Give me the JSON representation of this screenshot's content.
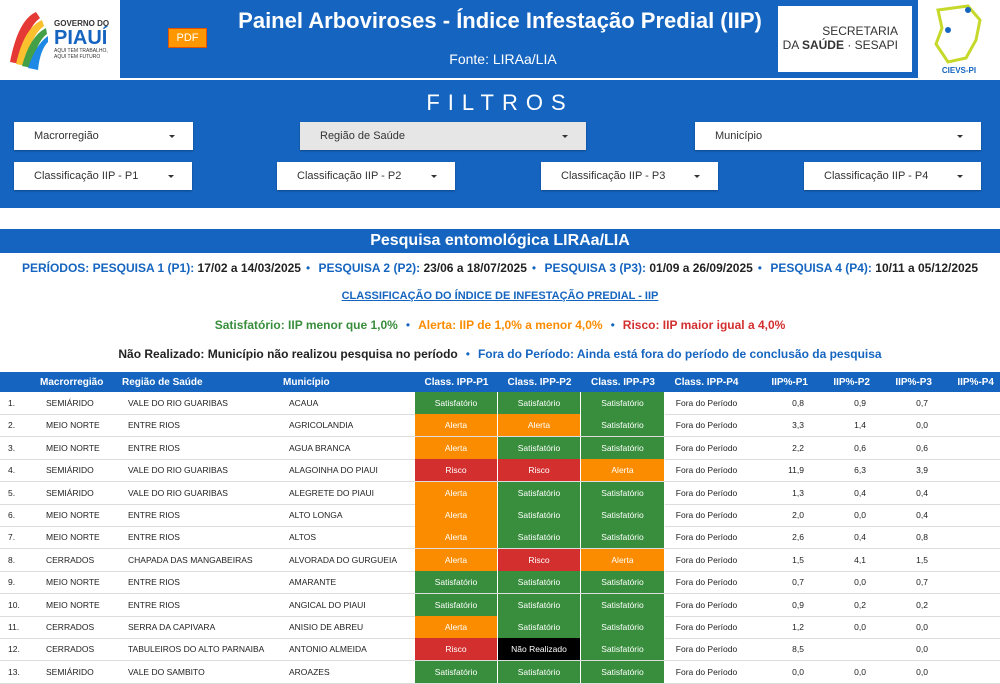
{
  "header": {
    "title": "Painel Arboviroses - Índice Infestação Predial (IIP)",
    "source": "Fonte: LIRAa/LIA",
    "pdf_button": "PDF",
    "logo_gov": {
      "top": "GOVERNO DO",
      "name": "PIAUÍ",
      "tagline1": "AQUI TEM TRABALHO,",
      "tagline2": "AQUI TEM FUTURO"
    },
    "logo_sesapi": {
      "line1": "SECRETARIA",
      "line2a": "DA",
      "line2b": "SAÚDE",
      "line2c": "· SESAPI"
    },
    "logo_cievs": "CIEVS-PI"
  },
  "filters": {
    "title": "FILTROS",
    "row1": [
      "Macrorregião",
      "Região de Saúde",
      "Município"
    ],
    "row2": [
      "Classificação IIP - P1",
      "Classificação IIP - P2",
      "Classificação IIP - P3",
      "Classificação IIP - P4"
    ]
  },
  "section_title": "Pesquisa entomológica LIRAa/LIA",
  "periods": {
    "prefix": "PERÍODOS:",
    "items": [
      {
        "label": "PESQUISA 1 (P1):",
        "dates": "17/02 a 14/03/2025"
      },
      {
        "label": "PESQUISA 2 (P2):",
        "dates": "23/06 a 18/07/2025"
      },
      {
        "label": "PESQUISA 3 (P3):",
        "dates": "01/09 a 26/09/2025"
      },
      {
        "label": "PESQUISA 4 (P4):",
        "dates": "10/11 a 05/12/2025"
      }
    ]
  },
  "classification_title": "CLASSIFICAÇÃO DO ÍNDICE DE INFESTAÇÃO PREDIAL - IIP",
  "legend": [
    {
      "text": "Satisfatório: IIP menor que 1,0%",
      "color": "#388e3c"
    },
    {
      "text": "Alerta: IIP de 1,0% a menor 4,0%",
      "color": "#fb8c00"
    },
    {
      "text": "Risco: IIP maior igual a 4,0%",
      "color": "#d32f2f"
    }
  ],
  "notes": [
    {
      "term": "Não Realizado",
      "text": ": Município não realizou pesquisa no período",
      "color": "#222"
    },
    {
      "term": "Fora do Período",
      "text": ": Ainda está fora do período de conclusão da pesquisa",
      "color": "#1565c0"
    }
  ],
  "status_colors": {
    "Satisfatório": "#388e3c",
    "Alerta": "#fb8c00",
    "Risco": "#d32f2f",
    "Não Realizado": "#000000"
  },
  "table": {
    "headers": [
      "Macrorregião",
      "Região de Saúde",
      "Município",
      "Class. IPP-P1",
      "Class. IPP-P2",
      "Class. IPP-P3",
      "Class. IPP-P4",
      "IIP%-P1",
      "IIP%-P2",
      "IIP%-P3",
      "IIP%-P4"
    ],
    "rows": [
      [
        "1.",
        "SEMIÁRIDO",
        "VALE DO RIO GUARIBAS",
        "ACAUA",
        "Satisfatório",
        "Satisfatório",
        "Satisfatório",
        "Fora do Período",
        "0,8",
        "0,9",
        "0,7"
      ],
      [
        "2.",
        "MEIO NORTE",
        "ENTRE RIOS",
        "AGRICOLANDIA",
        "Alerta",
        "Alerta",
        "Satisfatório",
        "Fora do Período",
        "3,3",
        "1,4",
        "0,0"
      ],
      [
        "3.",
        "MEIO NORTE",
        "ENTRE RIOS",
        "AGUA BRANCA",
        "Alerta",
        "Satisfatório",
        "Satisfatório",
        "Fora do Período",
        "2,2",
        "0,6",
        "0,6"
      ],
      [
        "4.",
        "SEMIÁRIDO",
        "VALE DO RIO GUARIBAS",
        "ALAGOINHA DO PIAUI",
        "Risco",
        "Risco",
        "Alerta",
        "Fora do Período",
        "11,9",
        "6,3",
        "3,9"
      ],
      [
        "5.",
        "SEMIÁRIDO",
        "VALE DO RIO GUARIBAS",
        "ALEGRETE DO PIAUI",
        "Alerta",
        "Satisfatório",
        "Satisfatório",
        "Fora do Período",
        "1,3",
        "0,4",
        "0,4"
      ],
      [
        "6.",
        "MEIO NORTE",
        "ENTRE RIOS",
        "ALTO LONGA",
        "Alerta",
        "Satisfatório",
        "Satisfatório",
        "Fora do Período",
        "2,0",
        "0,0",
        "0,4"
      ],
      [
        "7.",
        "MEIO NORTE",
        "ENTRE RIOS",
        "ALTOS",
        "Alerta",
        "Satisfatório",
        "Satisfatório",
        "Fora do Período",
        "2,6",
        "0,4",
        "0,8"
      ],
      [
        "8.",
        "CERRADOS",
        "CHAPADA DAS MANGABEIRAS",
        "ALVORADA DO GURGUEIA",
        "Alerta",
        "Risco",
        "Alerta",
        "Fora do Período",
        "1,5",
        "4,1",
        "1,5"
      ],
      [
        "9.",
        "MEIO NORTE",
        "ENTRE RIOS",
        "AMARANTE",
        "Satisfatório",
        "Satisfatório",
        "Satisfatório",
        "Fora do Período",
        "0,7",
        "0,0",
        "0,7"
      ],
      [
        "10.",
        "MEIO NORTE",
        "ENTRE RIOS",
        "ANGICAL DO PIAUI",
        "Satisfatório",
        "Satisfatório",
        "Satisfatório",
        "Fora do Período",
        "0,9",
        "0,2",
        "0,2"
      ],
      [
        "11.",
        "CERRADOS",
        "SERRA DA CAPIVARA",
        "ANISIO DE ABREU",
        "Alerta",
        "Satisfatório",
        "Satisfatório",
        "Fora do Período",
        "1,2",
        "0,0",
        "0,0"
      ],
      [
        "12.",
        "CERRADOS",
        "TABULEIROS DO ALTO PARNAIBA",
        "ANTONIO ALMEIDA",
        "Risco",
        "Não Realizado",
        "Satisfatório",
        "Fora do Período",
        "8,5",
        null,
        "0,0"
      ],
      [
        "13.",
        "SEMIÁRIDO",
        "VALE DO SAMBITO",
        "AROAZES",
        "Satisfatório",
        "Satisfatório",
        "Satisfatório",
        "Fora do Período",
        "0,0",
        "0,0",
        "0,0"
      ]
    ]
  }
}
